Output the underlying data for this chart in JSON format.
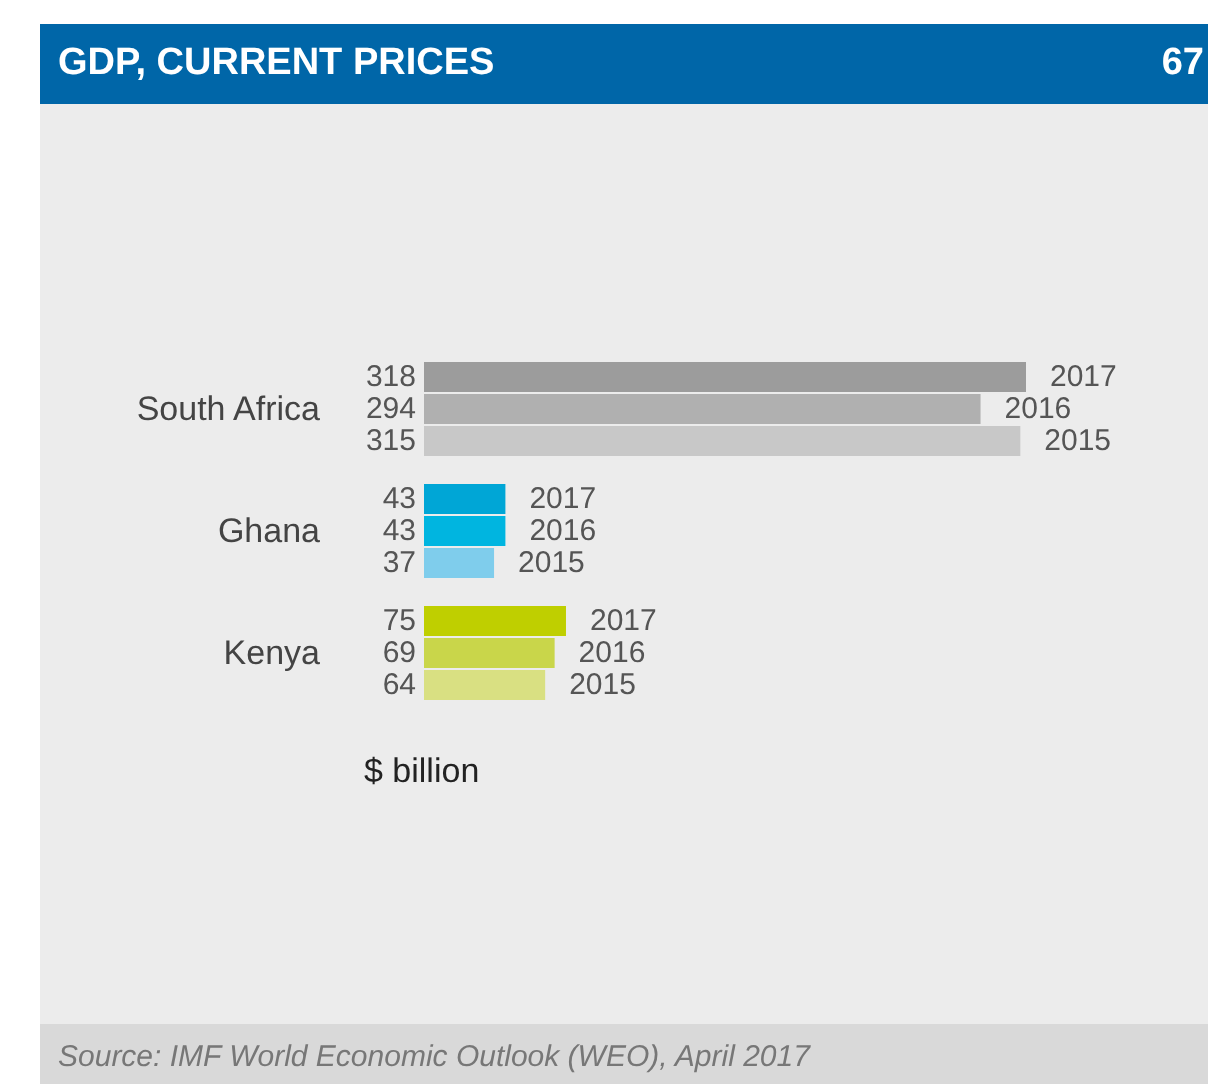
{
  "chart_data": {
    "type": "bar",
    "title": "GDP, CURRENT PRICES",
    "orientation": "horizontal",
    "data_labels": true,
    "legend": false,
    "categories": [
      "South Africa",
      "Ghana",
      "Kenya"
    ],
    "series": [
      {
        "name": "2017",
        "colors": [
          "#9c9c9c",
          "#00a6d6",
          "#bfcf00"
        ],
        "values": [
          318,
          43,
          75
        ]
      },
      {
        "name": "2016",
        "colors": [
          "#b0b0b0",
          "#00b5e0",
          "#c9d64a"
        ],
        "values": [
          294,
          43,
          69
        ]
      },
      {
        "name": "2015",
        "colors": [
          "#c8c8c8",
          "#7fcdec",
          "#d9e082"
        ],
        "values": [
          315,
          37,
          64
        ]
      }
    ],
    "annotations": [
      "67",
      "$ billion",
      "Source: IMF World Economic Outlook (WEO), April 2017"
    ]
  }
}
